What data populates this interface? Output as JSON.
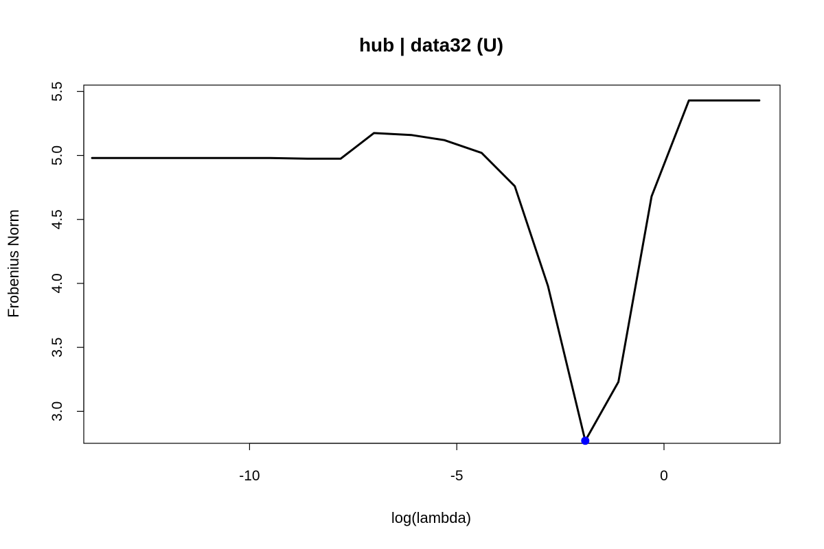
{
  "chart_data": {
    "type": "line",
    "title": "hub | data32 (U)",
    "xlabel": "log(lambda)",
    "ylabel": "Frobenius Norm",
    "xlim": [
      -14.0,
      2.8
    ],
    "ylim": [
      2.75,
      5.55
    ],
    "x_ticks": [
      -10,
      -5,
      0
    ],
    "x_tick_labels": [
      "-10",
      "-5",
      "0"
    ],
    "y_ticks": [
      3.0,
      3.5,
      4.0,
      4.5,
      5.0,
      5.5
    ],
    "y_tick_labels": [
      "3.0",
      "3.5",
      "4.0",
      "4.5",
      "5.0",
      "5.5"
    ],
    "grid": false,
    "series": [
      {
        "x": [
          -13.8,
          -12.9,
          -12.0,
          -11.2,
          -10.3,
          -9.5,
          -8.6,
          -7.8,
          -7.0,
          -6.1,
          -5.3,
          -4.4,
          -3.6,
          -2.8,
          -1.9,
          -1.1,
          -0.3,
          0.6,
          1.4,
          2.3
        ],
        "y": [
          4.98,
          4.98,
          4.98,
          4.98,
          4.98,
          4.98,
          4.975,
          4.975,
          5.175,
          5.16,
          5.12,
          5.02,
          4.76,
          3.98,
          2.77,
          3.23,
          4.68,
          5.43,
          5.43,
          5.43
        ],
        "color": "#000000"
      }
    ],
    "highlight_point": {
      "x": -1.9,
      "y": 2.77,
      "color": "#0000ff"
    }
  }
}
